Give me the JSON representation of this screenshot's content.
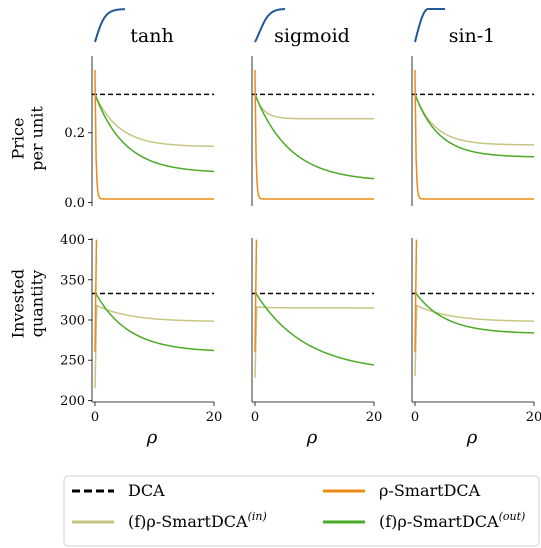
{
  "chart_data": {
    "type": "line",
    "column_titles": [
      "tanh",
      "sigmoid",
      "sin-1"
    ],
    "row_labels": [
      [
        "Price",
        "per unit"
      ],
      [
        "Invested",
        "quantity"
      ]
    ],
    "xlabel": "ρ",
    "xlim": [
      -0.5,
      20
    ],
    "x_ticks": [
      0,
      20
    ],
    "rows": [
      {
        "ylim": [
          -0.01,
          0.42
        ],
        "y_ticks": [
          0.0,
          0.2
        ],
        "y_tick_labels": [
          "0.0",
          "0.2"
        ],
        "grid": false
      },
      {
        "ylim": [
          198,
          402
        ],
        "y_ticks": [
          200,
          250,
          300,
          350,
          400
        ],
        "y_tick_labels": [
          "200",
          "250",
          "300",
          "350",
          "400"
        ],
        "grid": false
      }
    ],
    "legend": {
      "placement": "bottom",
      "entries": [
        {
          "label": "DCA",
          "color": "#000000",
          "style": "dashed"
        },
        {
          "label": "ρ-SmartDCA",
          "color": "#ef8a17",
          "style": "solid"
        },
        {
          "label": "(f)ρ-SmartDCA",
          "sup": "(in)",
          "color": "#c8c582",
          "style": "solid"
        },
        {
          "label": "(f)ρ-SmartDCA",
          "sup": "(out)",
          "color": "#4aac26",
          "style": "solid"
        }
      ]
    },
    "panels": [
      [
        {
          "dca": 0.31,
          "smart": {
            "start": 0.38,
            "end": 0.01,
            "k": 6.0
          },
          "fin": {
            "start": 0.31,
            "end": 0.16,
            "k": 0.25
          },
          "fout": {
            "start": 0.31,
            "end": 0.085,
            "k": 0.2
          }
        },
        {
          "dca": 0.31,
          "smart": {
            "start": 0.38,
            "end": 0.01,
            "k": 6.0
          },
          "fin": {
            "start": 0.31,
            "end": 0.24,
            "k": 0.7
          },
          "fout": {
            "start": 0.31,
            "end": 0.06,
            "k": 0.17
          }
        },
        {
          "dca": 0.31,
          "smart": {
            "start": 0.38,
            "end": 0.01,
            "k": 6.0
          },
          "fin": {
            "start": 0.31,
            "end": 0.165,
            "k": 0.3
          },
          "fout": {
            "start": 0.31,
            "end": 0.13,
            "k": 0.25
          }
        }
      ],
      [
        {
          "dca": 333,
          "smart": {
            "spike": 400,
            "low": 260
          },
          "fin": {
            "start": 215,
            "peak": 318,
            "end": 298,
            "k": 0.18
          },
          "fout": {
            "start": 335,
            "end": 260,
            "k": 0.18
          }
        },
        {
          "dca": 333,
          "smart": {
            "spike": 400,
            "low": 260
          },
          "fin": {
            "start": 228,
            "peak": 316,
            "end": 315,
            "k": 0.3
          },
          "fout": {
            "start": 335,
            "end": 235,
            "k": 0.12
          }
        },
        {
          "dca": 333,
          "smart": {
            "spike": 400,
            "low": 260
          },
          "fin": {
            "start": 230,
            "peak": 318,
            "end": 298,
            "k": 0.18
          },
          "fout": {
            "start": 335,
            "end": 283,
            "k": 0.2
          }
        }
      ]
    ],
    "inset_funcs": [
      "tanh",
      "sigmoid",
      "sin-1"
    ]
  }
}
